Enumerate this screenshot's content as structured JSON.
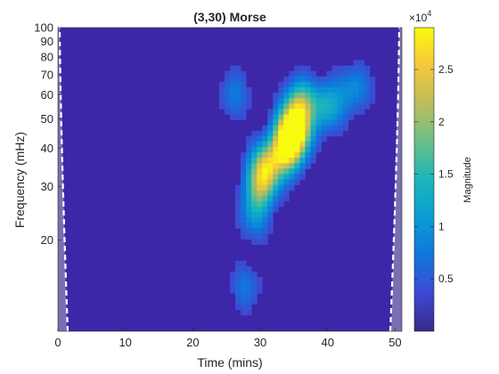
{
  "chart_data": {
    "type": "heatmap",
    "title": "(3,30) Morse",
    "xlabel": "Time (mins)",
    "ylabel": "Frequency (mHz)",
    "xlim": [
      0,
      51
    ],
    "ylim": [
      10,
      100
    ],
    "y_scale": "log",
    "x_ticks": [
      0,
      10,
      20,
      30,
      40,
      50
    ],
    "x_tick_labels": [
      "0",
      "10",
      "20",
      "30",
      "40",
      "50"
    ],
    "y_ticks": [
      20,
      30,
      40,
      50,
      60,
      70,
      80,
      90,
      100
    ],
    "y_tick_labels": [
      "20",
      "30",
      "40",
      "50",
      "60",
      "70",
      "80",
      "90",
      "100"
    ],
    "colormap": "parula",
    "colorbar": {
      "label": "Magnitude",
      "exponent_label": "×10",
      "exponent": "4",
      "range": [
        0,
        29000
      ],
      "ticks": [
        5000,
        10000,
        15000,
        20000,
        25000
      ],
      "tick_labels": [
        "0.5",
        "1",
        "1.5",
        "2",
        "2.5"
      ]
    },
    "cone_of_influence": "white dashed lines near left and right edges",
    "peaks": [
      {
        "time": 35,
        "frequency": 46,
        "magnitude": 29000
      },
      {
        "time": 34,
        "frequency": 40,
        "magnitude": 23000
      },
      {
        "time": 31,
        "frequency": 35,
        "magnitude": 19000
      },
      {
        "time": 36,
        "frequency": 56,
        "magnitude": 16000
      },
      {
        "time": 30,
        "frequency": 30,
        "magnitude": 14000
      },
      {
        "time": 40,
        "frequency": 55,
        "magnitude": 12000
      },
      {
        "time": 44,
        "frequency": 63,
        "magnitude": 8000
      },
      {
        "time": 26,
        "frequency": 60,
        "magnitude": 6000
      },
      {
        "time": 29,
        "frequency": 24,
        "magnitude": 7500
      },
      {
        "time": 28,
        "frequency": 14,
        "magnitude": 5500
      }
    ]
  },
  "colors": {
    "background": "#3D26A8",
    "cone_shade": "#7B6FB2",
    "colormap_stops": [
      "#352A87",
      "#3D49D3",
      "#0F77DB",
      "#0A9DD4",
      "#1CB6B9",
      "#6ABF87",
      "#BCBD5B",
      "#F5C63B",
      "#F9FB0E"
    ]
  }
}
